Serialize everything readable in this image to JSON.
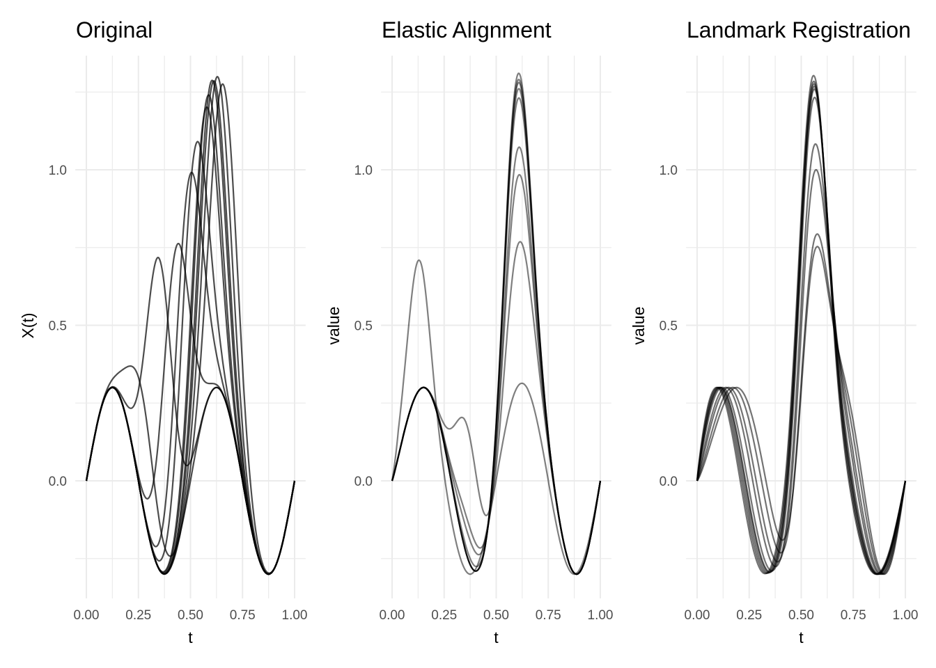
{
  "chart_data": [
    {
      "type": "line",
      "title": "Original",
      "xlabel": "t",
      "ylabel": "X(t)",
      "xlim": [
        0,
        1
      ],
      "ylim": [
        -0.375,
        1.375
      ],
      "xticks": [
        "0.00",
        "0.25",
        "0.50",
        "0.75",
        "1.00"
      ],
      "yticks": [
        "0.0",
        "0.5",
        "1.0"
      ],
      "model": "0.3*sin(4*pi*t^warp) + amp*exp(-((t-center)/0.09)^2) + extra",
      "line_color": "#000000",
      "line_opacity": 0.7,
      "curves": [
        {
          "center": 0.35,
          "amp": 1.0,
          "warp": 1
        },
        {
          "center": 0.43,
          "amp": 0.98,
          "warp": 1
        },
        {
          "center": 0.49,
          "amp": 1.0,
          "warp": 1
        },
        {
          "center": 0.52,
          "amp": 0.99,
          "warp": 1
        },
        {
          "center": 0.57,
          "amp": 0.96,
          "warp": 1
        },
        {
          "center": 0.58,
          "amp": 0.98,
          "warp": 1
        },
        {
          "center": 0.6,
          "amp": 1.0,
          "warp": 1
        },
        {
          "center": 0.61,
          "amp": 0.99,
          "warp": 1
        },
        {
          "center": 0.63,
          "amp": 1.0,
          "warp": 1
        },
        {
          "center": 0.66,
          "amp": 1.0,
          "warp": 1
        },
        {
          "center": 0.27,
          "amp": 0.35,
          "warp": 1
        }
      ]
    },
    {
      "type": "line",
      "title": "Elastic Alignment",
      "xlabel": "t",
      "ylabel": "value",
      "xlim": [
        0,
        1
      ],
      "ylim": [
        -0.375,
        1.375
      ],
      "xticks": [
        "0.00",
        "0.25",
        "0.50",
        "0.75",
        "1.00"
      ],
      "yticks": [
        "0.0",
        "0.5",
        "1.0"
      ],
      "model": "0.3*sin(4*pi*t^warp) + gaussian peak at center reaching 'peak' + trough lift",
      "line_color": "#000000",
      "line_opacity": 0.5,
      "curves": [
        {
          "center": 0.6,
          "peak": 1.3,
          "warp": 1.1,
          "lift": 0.0
        },
        {
          "center": 0.6,
          "peak": 1.28,
          "warp": 1.1,
          "lift": 0.0
        },
        {
          "center": 0.6,
          "peak": 1.27,
          "warp": 1.1,
          "lift": 0.0
        },
        {
          "center": 0.6,
          "peak": 1.25,
          "warp": 1.1,
          "lift": 0.0
        },
        {
          "center": 0.6,
          "peak": 1.22,
          "warp": 1.1,
          "lift": 0.02
        },
        {
          "center": 0.6,
          "peak": 1.06,
          "warp": 1.1,
          "lift": 0.08
        },
        {
          "center": 0.6,
          "peak": 0.97,
          "warp": 1.1,
          "lift": 0.12
        },
        {
          "center": 0.6,
          "peak": 0.75,
          "warp": 1.1,
          "lift": 0.42
        },
        {
          "center": 0.6,
          "peak": 0.3,
          "warp": 1.0,
          "lift": 0.0,
          "early_bump": 0.41
        }
      ]
    },
    {
      "type": "line",
      "title": "Landmark Registration",
      "xlabel": "t",
      "ylabel": "value",
      "xlim": [
        0,
        1
      ],
      "ylim": [
        -0.375,
        1.375
      ],
      "xticks": [
        "0.00",
        "0.25",
        "0.50",
        "0.75",
        "1.00"
      ],
      "yticks": [
        "0.0",
        "0.5",
        "1.0"
      ],
      "model": "0.3*sin(4*pi*t^warp) + gaussian peak at 0.555 reaching 'peak'",
      "line_color": "#000000",
      "line_opacity": 0.55,
      "curves": [
        {
          "center": 0.555,
          "peak": 0.71,
          "warp": 1.25
        },
        {
          "center": 0.555,
          "peak": 0.75,
          "warp": 1.18
        },
        {
          "center": 0.555,
          "peak": 0.97,
          "warp": 1.1
        },
        {
          "center": 0.555,
          "peak": 1.06,
          "warp": 1.05
        },
        {
          "center": 0.555,
          "peak": 1.22,
          "warp": 0.98
        },
        {
          "center": 0.555,
          "peak": 1.25,
          "warp": 0.95
        },
        {
          "center": 0.555,
          "peak": 1.27,
          "warp": 0.92
        },
        {
          "center": 0.555,
          "peak": 1.28,
          "warp": 0.9
        },
        {
          "center": 0.555,
          "peak": 1.3,
          "warp": 0.88
        },
        {
          "center": 0.555,
          "peak": 1.26,
          "warp": 0.94
        }
      ]
    }
  ]
}
